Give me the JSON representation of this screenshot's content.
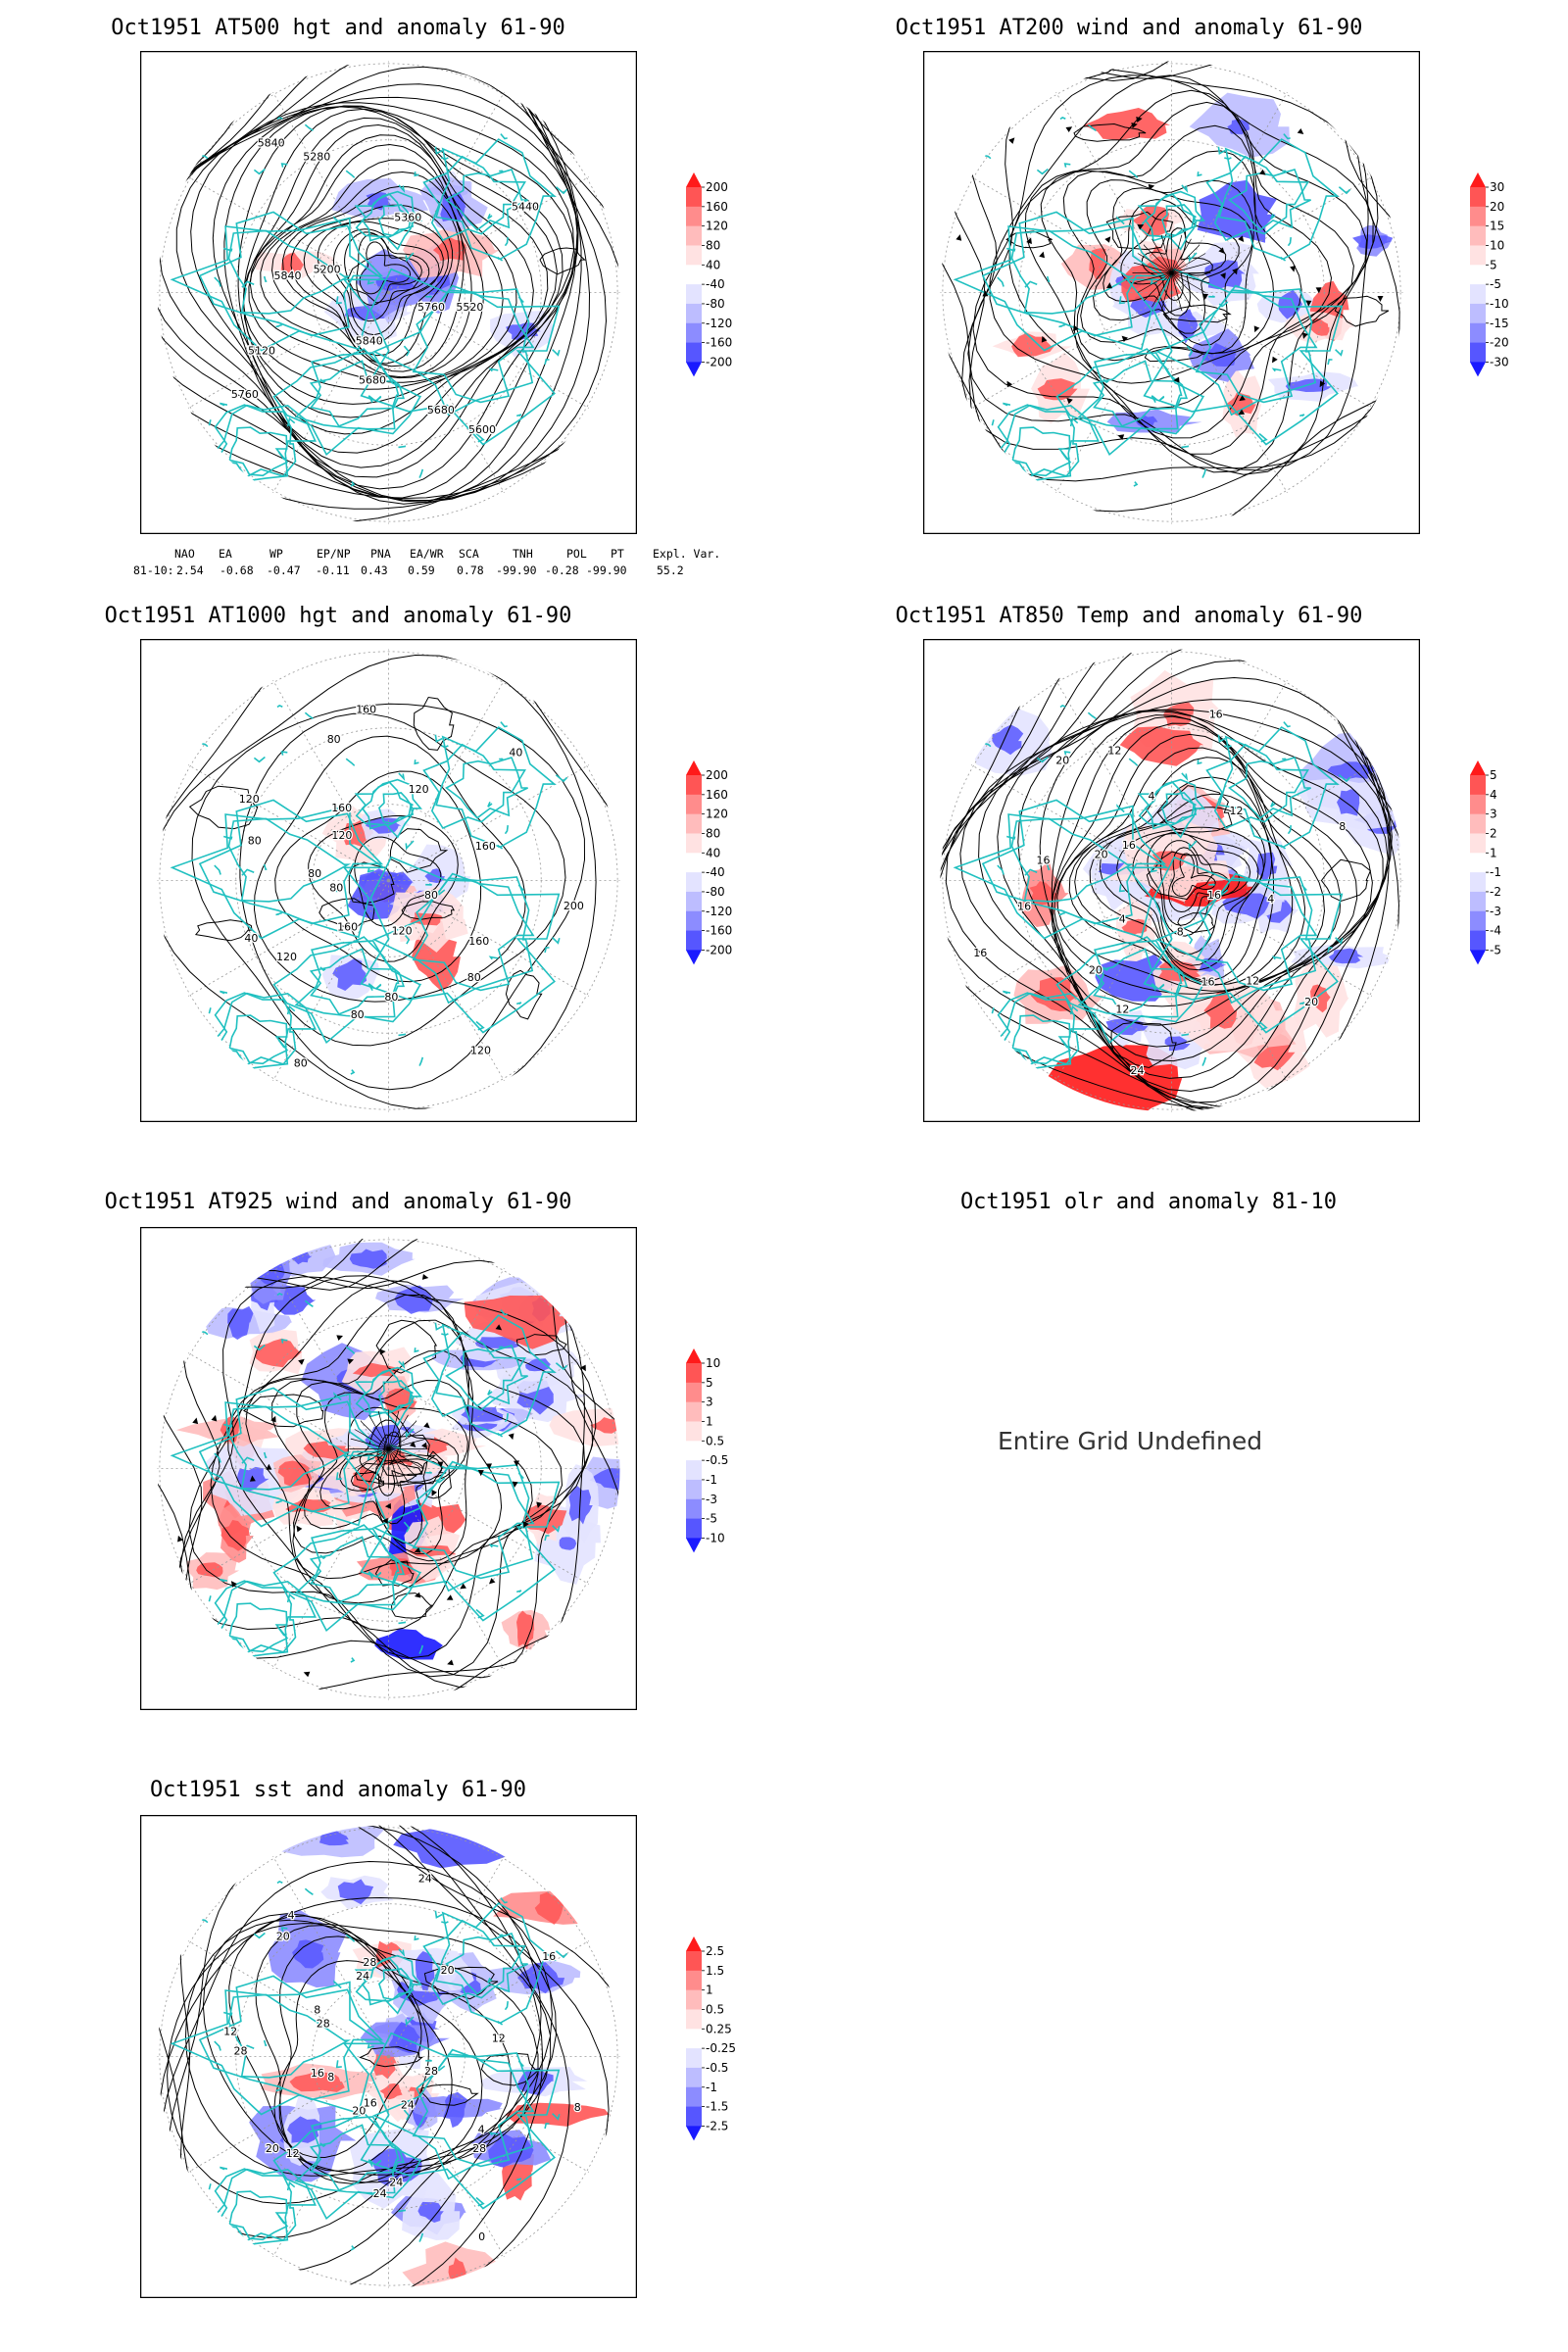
{
  "panels": [
    {
      "id": "p500",
      "title": "Oct1951 AT500 hgt and anomaly 61-90",
      "contour_labels": [
        "5760",
        "5680",
        "5840",
        "5120",
        "5200",
        "5280",
        "5360",
        "5440",
        "5520",
        "5600",
        "5680",
        "5760",
        "5840",
        "5840"
      ],
      "colorbar": [
        "200",
        "160",
        "120",
        "80",
        "40",
        "-40",
        "-80",
        "-120",
        "-160",
        "-200"
      ]
    },
    {
      "id": "p200",
      "title": "Oct1951 AT200 wind and anomaly 61-90",
      "contour_labels": [],
      "colorbar": [
        "30",
        "20",
        "15",
        "10",
        "5",
        "-5",
        "-10",
        "-15",
        "-20",
        "-30"
      ]
    },
    {
      "id": "p1000",
      "title": "Oct1951 AT1000 hgt and anomaly 61-90",
      "contour_labels": [
        "80",
        "80",
        "120",
        "80",
        "160",
        "40",
        "80",
        "120",
        "160",
        "160",
        "120",
        "40",
        "160",
        "200",
        "160",
        "120",
        "80",
        "80",
        "120",
        "80",
        "80",
        "120",
        "80"
      ],
      "colorbar": [
        "200",
        "160",
        "120",
        "80",
        "40",
        "-40",
        "-80",
        "-120",
        "-160",
        "-200"
      ]
    },
    {
      "id": "p850",
      "title": "Oct1951 AT850 Temp and anomaly 61-90",
      "contour_labels": [
        "16",
        "12",
        "8",
        "12",
        "4",
        "16",
        "20",
        "20",
        "4",
        "16",
        "12",
        "8",
        "4",
        "20",
        "16",
        "24",
        "20",
        "16",
        "16",
        "16",
        "12"
      ],
      "colorbar": [
        "5",
        "4",
        "3",
        "2",
        "1",
        "-1",
        "-2",
        "-3",
        "-4",
        "-5"
      ]
    },
    {
      "id": "p925",
      "title": "Oct1951 AT925 wind and anomaly 61-90",
      "contour_labels": [],
      "colorbar": [
        "10",
        "5",
        "3",
        "1",
        "0.5",
        "-0.5",
        "-1",
        "-3",
        "-5",
        "-10"
      ]
    },
    {
      "id": "polr",
      "title": "Oct1951 olr and anomaly 81-10",
      "message": "Entire Grid Undefined"
    },
    {
      "id": "psst",
      "title": "Oct1951 sst and anomaly 61-90",
      "contour_labels": [
        "28",
        "28",
        "24",
        "24",
        "20",
        "20",
        "16",
        "12",
        "8",
        "4",
        "28",
        "24",
        "20",
        "16",
        "12",
        "8",
        "4",
        "0",
        "24",
        "16",
        "12",
        "8",
        "28",
        "28",
        "20",
        "24"
      ],
      "colorbar": [
        "2.5",
        "1.5",
        "1",
        "0.5",
        "0.25",
        "-0.25",
        "-0.5",
        "-1",
        "-1.5",
        "-2.5"
      ]
    }
  ],
  "indices": {
    "headers": [
      "NAO",
      "EA",
      "WP",
      "EP/NP",
      "PNA",
      "EA/WR",
      "SCA",
      "TNH",
      "POL",
      "PT",
      "Expl. Var."
    ],
    "row_label": "81-10:",
    "values": [
      "2.54",
      "-0.68",
      "-0.47",
      "-0.11",
      "0.43",
      "0.59",
      "0.78",
      "-99.90",
      "-0.28",
      "-99.90",
      "55.2"
    ]
  },
  "colors": {
    "coast": "#20c0c0",
    "pos": [
      "#ff1a1a",
      "#ff5555",
      "#ff8c8c",
      "#ffbcbc",
      "#ffe2e2"
    ],
    "neg": [
      "#e3e3ff",
      "#bdbdff",
      "#8c8cff",
      "#5656ff",
      "#1a1aff"
    ]
  }
}
